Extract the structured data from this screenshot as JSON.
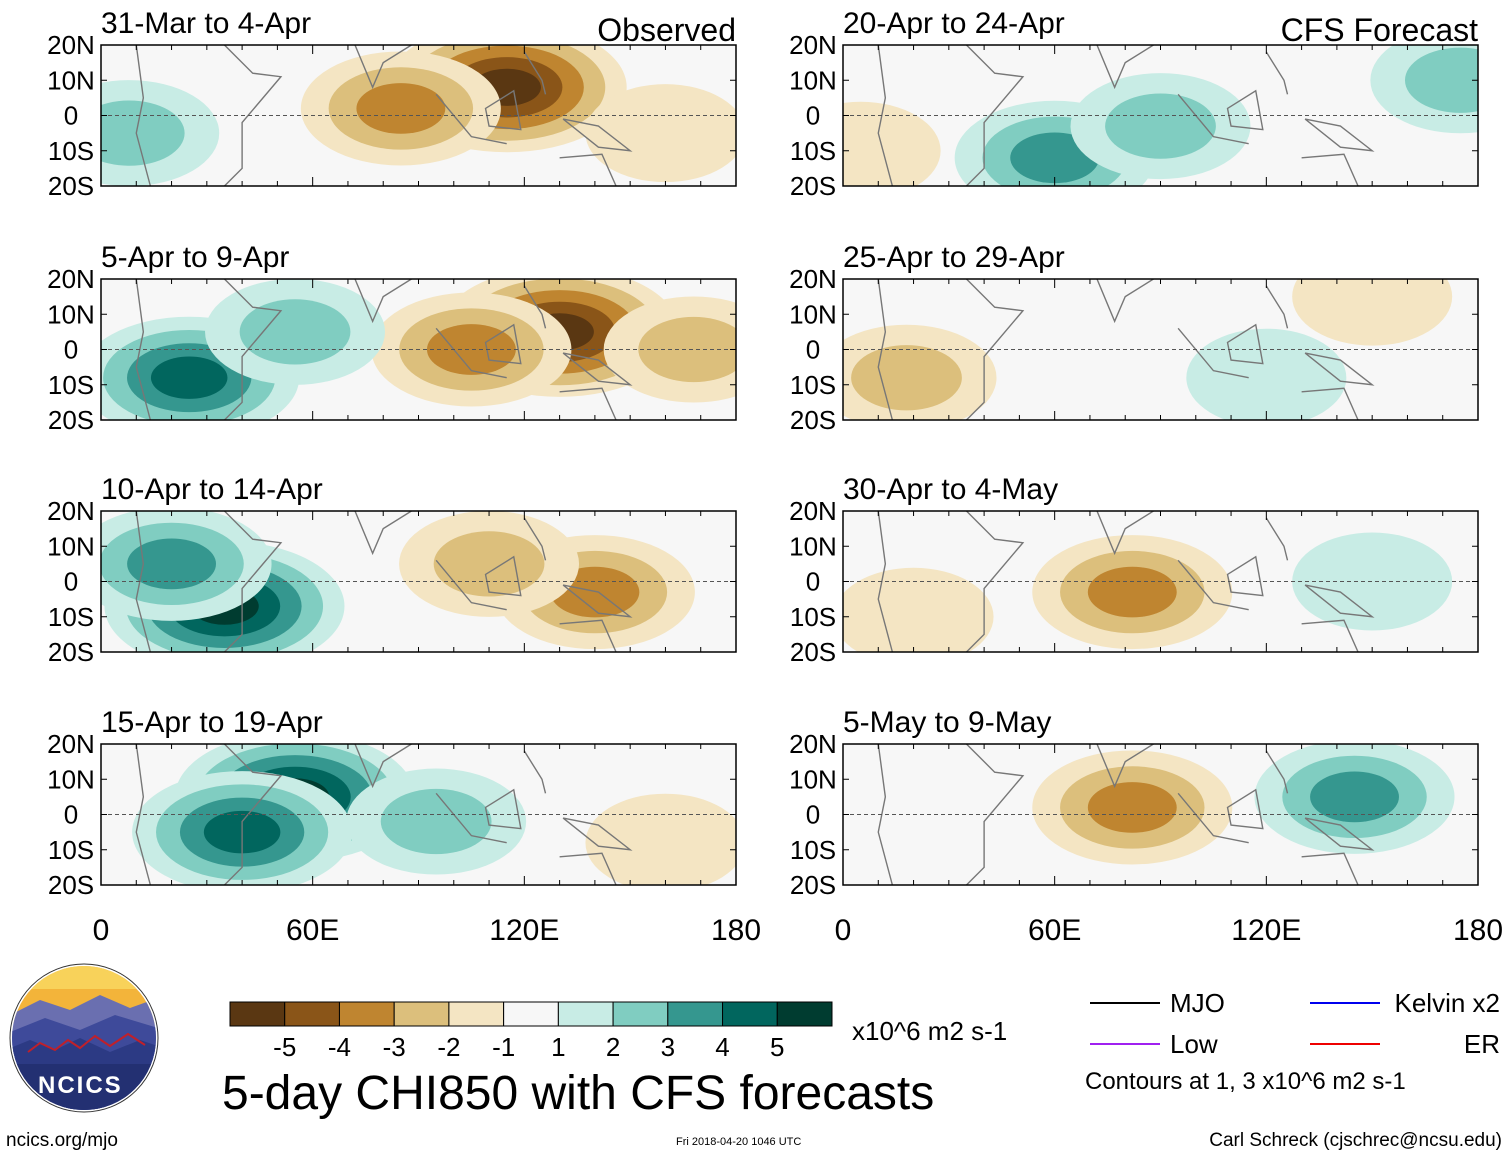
{
  "figure": {
    "title": "5-day CHI850 with CFS forecasts",
    "source_url": "ncics.org/mjo",
    "timestamp": "Fri 2018-04-20 1046 UTC",
    "author": "Carl Schreck (cjschrec@ncsu.edu)",
    "logo_text": "NCICS",
    "units": "x10^6 m2 s-1",
    "contour_note": "Contours at 1, 3 x10^6 m2 s-1"
  },
  "chart_data": {
    "type": "heatmap",
    "variable": "CHI850 anomaly",
    "x_axis": {
      "range": [
        0,
        180
      ],
      "ticks": [
        0,
        60,
        120,
        180
      ],
      "tick_labels": [
        "0",
        "60E",
        "120E",
        "180"
      ]
    },
    "y_axis": {
      "range": [
        -20,
        20
      ],
      "ticks": [
        20,
        10,
        0,
        -10,
        -20
      ],
      "tick_labels": [
        "20N",
        "10N",
        "0",
        "10S",
        "20S"
      ]
    },
    "colorbar": {
      "levels": [
        -5,
        -4,
        -3,
        -2,
        -1,
        1,
        2,
        3,
        4,
        5
      ],
      "tick_labels": [
        "-5",
        "-4",
        "-3",
        "-2",
        "-1",
        "1",
        "2",
        "3",
        "4",
        "5"
      ],
      "colors": [
        "#5a3712",
        "#8a5518",
        "#bf8530",
        "#dcbf7c",
        "#f4e5c3",
        "#f7f7f7",
        "#c8ece5",
        "#80cdc1",
        "#35978f",
        "#01665e",
        "#003c30"
      ]
    },
    "legend": [
      {
        "name": "MJO",
        "color": "#000000"
      },
      {
        "name": "Kelvin x2",
        "color": "#0000ee"
      },
      {
        "name": "Low",
        "color": "#a020f0"
      },
      {
        "name": "ER",
        "color": "#ee0000"
      }
    ],
    "columns": [
      {
        "label": "Observed"
      },
      {
        "label": "CFS Forecast"
      }
    ],
    "panels": [
      {
        "col": 0,
        "row": 0,
        "period": "31-Mar to 4-Apr",
        "anomalies": [
          {
            "lon": 115,
            "lat": 8,
            "value": -5
          },
          {
            "lon": 85,
            "lat": 2,
            "value": -3
          },
          {
            "lon": 160,
            "lat": -5,
            "value": -1
          },
          {
            "lon": 8,
            "lat": -5,
            "value": 2
          }
        ]
      },
      {
        "col": 0,
        "row": 1,
        "period": "5-Apr to 9-Apr",
        "anomalies": [
          {
            "lon": 130,
            "lat": 5,
            "value": -5
          },
          {
            "lon": 105,
            "lat": 0,
            "value": -3
          },
          {
            "lon": 168,
            "lat": 0,
            "value": -2
          },
          {
            "lon": 25,
            "lat": -8,
            "value": 4
          },
          {
            "lon": 55,
            "lat": 5,
            "value": 2
          }
        ]
      },
      {
        "col": 0,
        "row": 2,
        "period": "10-Apr to 14-Apr",
        "anomalies": [
          {
            "lon": 35,
            "lat": -7,
            "value": 5
          },
          {
            "lon": 20,
            "lat": 5,
            "value": 3
          },
          {
            "lon": 140,
            "lat": -3,
            "value": -3
          },
          {
            "lon": 110,
            "lat": 5,
            "value": -2
          }
        ]
      },
      {
        "col": 0,
        "row": 3,
        "period": "15-Apr to 19-Apr",
        "anomalies": [
          {
            "lon": 55,
            "lat": 5,
            "value": 5
          },
          {
            "lon": 40,
            "lat": -5,
            "value": 4
          },
          {
            "lon": 95,
            "lat": -2,
            "value": 2
          },
          {
            "lon": 160,
            "lat": -8,
            "value": -1
          }
        ]
      },
      {
        "col": 1,
        "row": 0,
        "period": "20-Apr to 24-Apr",
        "anomalies": [
          {
            "lon": 60,
            "lat": -12,
            "value": 3
          },
          {
            "lon": 90,
            "lat": -3,
            "value": 2
          },
          {
            "lon": 175,
            "lat": 10,
            "value": 2
          },
          {
            "lon": 5,
            "lat": -10,
            "value": -1
          }
        ]
      },
      {
        "col": 1,
        "row": 1,
        "period": "25-Apr to 29-Apr",
        "anomalies": [
          {
            "lon": 18,
            "lat": -8,
            "value": -2
          },
          {
            "lon": 120,
            "lat": -8,
            "value": 1
          },
          {
            "lon": 150,
            "lat": 15,
            "value": -1
          }
        ]
      },
      {
        "col": 1,
        "row": 2,
        "period": "30-Apr to 4-May",
        "anomalies": [
          {
            "lon": 82,
            "lat": -3,
            "value": -3
          },
          {
            "lon": 20,
            "lat": -10,
            "value": -1
          },
          {
            "lon": 150,
            "lat": 0,
            "value": 1
          }
        ]
      },
      {
        "col": 1,
        "row": 3,
        "period": "5-May to 9-May",
        "anomalies": [
          {
            "lon": 82,
            "lat": 2,
            "value": -3
          },
          {
            "lon": 145,
            "lat": 5,
            "value": 3
          }
        ]
      }
    ]
  }
}
